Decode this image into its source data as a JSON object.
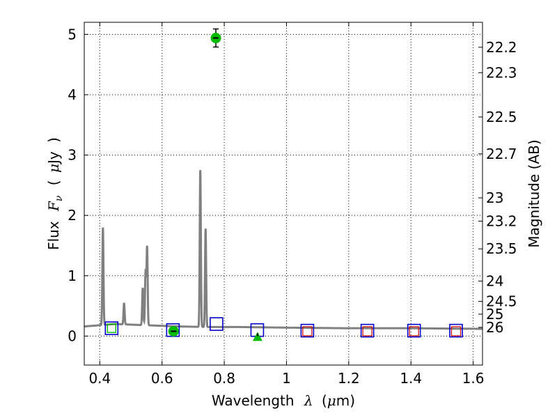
{
  "chart_data": {
    "type": "scatter",
    "xlabel_text": "Wavelength",
    "xlabel_sym": "λ",
    "xlabel_unit_open": "(",
    "xlabel_unit_mu": "μ",
    "xlabel_unit_rest": "m)",
    "ylabel_text": "Flux",
    "ylabel_sym": "F",
    "ylabel_sub": "ν",
    "ylabel_unit_open": "(",
    "ylabel_unit_mu": "μ",
    "ylabel_unit_rest": "Jy",
    "ylabel_unit_close": ")",
    "y2label": "Magnitude (AB)",
    "xlim": [
      0.35,
      1.63
    ],
    "ylim": [
      -0.48,
      5.2
    ],
    "grid": true,
    "x_ticks": [
      0.4,
      0.6,
      0.8,
      1.0,
      1.2,
      1.4,
      1.6
    ],
    "x_tick_labels": [
      "0.4",
      "0.6",
      "0.8",
      "1",
      "1.2",
      "1.4",
      "1.6"
    ],
    "y_ticks": [
      0,
      1,
      2,
      3,
      4,
      5
    ],
    "y_tick_labels": [
      "0",
      "1",
      "2",
      "3",
      "4",
      "5"
    ],
    "mag_ticks": [
      {
        "label": "22.2",
        "value": 22.2
      },
      {
        "label": "22.3",
        "value": 22.3
      },
      {
        "label": "22.5",
        "value": 22.5
      },
      {
        "label": "22.7",
        "value": 22.7
      },
      {
        "label": "23",
        "value": 23.0
      },
      {
        "label": "23.2",
        "value": 23.2
      },
      {
        "label": "23.5",
        "value": 23.5
      },
      {
        "label": "24",
        "value": 24.0
      },
      {
        "label": "24.5",
        "value": 24.5
      },
      {
        "label": "25",
        "value": 25.0
      },
      {
        "label": "26",
        "value": 26.0
      }
    ],
    "model_spectrum": {
      "color": "#808080",
      "continuum": [
        [
          0.35,
          0.16
        ],
        [
          0.45,
          0.2
        ],
        [
          0.55,
          0.18
        ],
        [
          0.65,
          0.16
        ],
        [
          0.75,
          0.15
        ],
        [
          0.85,
          0.15
        ],
        [
          1.0,
          0.14
        ],
        [
          1.2,
          0.13
        ],
        [
          1.4,
          0.13
        ],
        [
          1.63,
          0.12
        ]
      ],
      "lines": [
        {
          "x": 0.41,
          "peak": 1.8
        },
        {
          "x": 0.478,
          "peak": 0.55
        },
        {
          "x": 0.538,
          "peak": 0.8
        },
        {
          "x": 0.547,
          "peak": 1.05
        },
        {
          "x": 0.552,
          "peak": 1.48
        },
        {
          "x": 0.723,
          "peak": 2.75
        },
        {
          "x": 0.74,
          "peak": 1.78
        }
      ]
    },
    "model_photometry": {
      "color": "#0000cc",
      "points": [
        [
          0.438,
          0.13
        ],
        [
          0.635,
          0.1
        ],
        [
          0.775,
          0.2
        ],
        [
          0.906,
          0.1
        ],
        [
          1.067,
          0.09
        ],
        [
          1.26,
          0.09
        ],
        [
          1.41,
          0.09
        ],
        [
          1.545,
          0.09
        ]
      ]
    },
    "inner_boxes": {
      "color": "#cc0000",
      "points": [
        [
          1.067,
          0.08
        ],
        [
          1.26,
          0.08
        ],
        [
          1.41,
          0.08
        ],
        [
          1.545,
          0.08
        ]
      ]
    },
    "observed": {
      "color": "#00bb00",
      "points": [
        {
          "x": 0.773,
          "y": 4.94,
          "err": 0.15
        },
        {
          "x": 0.637,
          "y": 0.08,
          "err": 0.02
        }
      ]
    },
    "upper_limit": {
      "color": "#00bb00",
      "x": 0.907,
      "y": 0.0
    },
    "small_green_box": {
      "x": 0.438,
      "y": 0.13
    }
  }
}
